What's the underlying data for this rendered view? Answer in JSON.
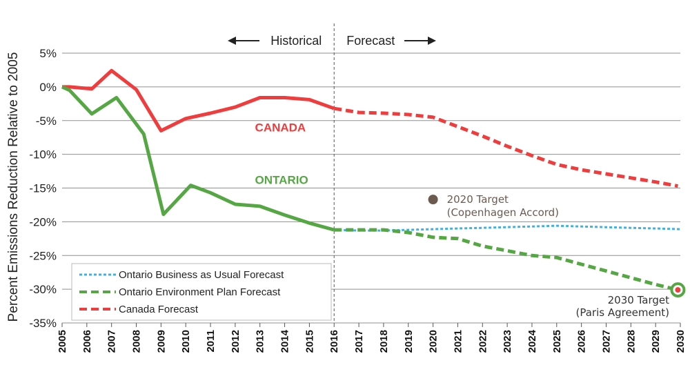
{
  "chart_data": {
    "type": "line",
    "ylabel": "Percent Emissions Reduction Relative to 2005",
    "ylim": [
      -35,
      5
    ],
    "yticks": [
      5,
      0,
      -5,
      -10,
      -15,
      -20,
      -25,
      -30,
      -35
    ],
    "ytick_labels": [
      "5%",
      "0%",
      "-5%",
      "-10%",
      "-15%",
      "-20%",
      "-25%",
      "-30%",
      "-35%"
    ],
    "xlim": [
      2005,
      2030
    ],
    "xticks": [
      2005,
      2006,
      2007,
      2008,
      2009,
      2010,
      2011,
      2012,
      2013,
      2014,
      2015,
      2016,
      2017,
      2018,
      2019,
      2020,
      2021,
      2022,
      2023,
      2024,
      2025,
      2026,
      2027,
      2028,
      2029,
      2030
    ],
    "grid": "horizontal",
    "period_labels": {
      "historical": "Historical",
      "forecast": "Forecast"
    },
    "divider_x": 2016,
    "series": [
      {
        "name": "CANADA",
        "color": "#f03c3c",
        "style": "solid",
        "x": [
          2005,
          2005.3,
          2006.2,
          2007,
          2008,
          2009,
          2010,
          2011,
          2012,
          2013,
          2014,
          2015,
          2016
        ],
        "y": [
          0,
          0,
          -0.3,
          2.4,
          -0.4,
          -6.5,
          -4.7,
          -3.9,
          -3.0,
          -1.6,
          -1.6,
          -1.9,
          -3.2
        ]
      },
      {
        "name": "ONTARIO",
        "color": "#55a743",
        "style": "solid",
        "x": [
          2005,
          2005.3,
          2006.2,
          2007.2,
          2008.3,
          2009.1,
          2010.2,
          2011,
          2012,
          2013,
          2014,
          2015,
          2016
        ],
        "y": [
          0,
          -0.5,
          -4.0,
          -1.6,
          -7.0,
          -18.9,
          -14.6,
          -15.7,
          -17.4,
          -17.7,
          -19.0,
          -20.2,
          -21.2
        ]
      },
      {
        "name": "Canada Forecast",
        "color": "#f03c3c",
        "style": "dashed",
        "x": [
          2016,
          2017,
          2018,
          2019,
          2020,
          2021,
          2022,
          2023,
          2024,
          2025,
          2026,
          2027,
          2028,
          2029,
          2029.9
        ],
        "y": [
          -3.2,
          -3.8,
          -3.9,
          -4.1,
          -4.5,
          -5.9,
          -7.3,
          -8.8,
          -10.2,
          -11.5,
          -12.3,
          -12.9,
          -13.5,
          -14.1,
          -14.7
        ]
      },
      {
        "name": "Ontario Environment Plan Forecast",
        "color": "#55a743",
        "style": "dashed",
        "x": [
          2016,
          2017,
          2018,
          2019,
          2020,
          2021,
          2022,
          2023,
          2024,
          2025,
          2026,
          2027,
          2028,
          2029,
          2029.9
        ],
        "y": [
          -21.2,
          -21.2,
          -21.2,
          -21.6,
          -22.3,
          -22.5,
          -23.6,
          -24.3,
          -25.0,
          -25.3,
          -26.3,
          -27.3,
          -28.3,
          -29.3,
          -30.1
        ]
      },
      {
        "name": "Ontario Business as Usual Forecast",
        "color": "#3db1e0",
        "style": "dotted",
        "x": [
          2016,
          2017,
          2018,
          2019,
          2020,
          2021,
          2022,
          2023,
          2024,
          2025,
          2026,
          2027,
          2028,
          2029,
          2030
        ],
        "y": [
          -21.2,
          -21.3,
          -21.3,
          -21.2,
          -21.1,
          -21.0,
          -20.9,
          -20.8,
          -20.7,
          -20.6,
          -20.7,
          -20.8,
          -20.9,
          -21.0,
          -21.1
        ]
      }
    ],
    "series_labels": [
      {
        "text": "CANADA",
        "x": 2012.8,
        "y": -6.6,
        "color": "#f03c3c"
      },
      {
        "text": "ONTARIO",
        "x": 2012.8,
        "y": -14.4,
        "color": "#55a743"
      }
    ],
    "legend": {
      "placement": "bottom-left",
      "entries": [
        {
          "label": "Ontario Business as Usual Forecast",
          "color": "#3db1e0",
          "style": "dotted"
        },
        {
          "label": "Ontario Environment Plan Forecast",
          "color": "#55a743",
          "style": "dashed"
        },
        {
          "label": "Canada Forecast",
          "color": "#f03c3c",
          "style": "dashed"
        }
      ]
    },
    "targets": [
      {
        "label_line1": "2020 Target",
        "label_line2": "(Copenhagen Accord)",
        "x": 2020,
        "y": -16.7,
        "marker_color": "#6d5a4f"
      },
      {
        "label_line1": "2030 Target",
        "label_line2": "(Paris  Agreement)",
        "x": 2029.9,
        "y": -30.1,
        "marker_color": "#f03c3c",
        "ring_color": "#55a743"
      }
    ]
  }
}
